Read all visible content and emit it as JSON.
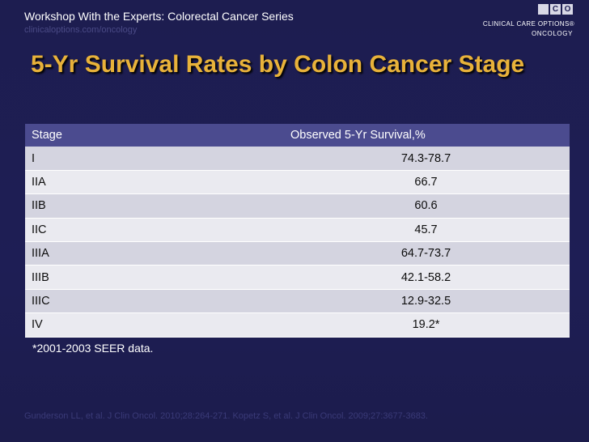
{
  "header": {
    "series": "Workshop With the Experts: Colorectal Cancer Series",
    "url": "clinicaloptions.com/oncology"
  },
  "logo": {
    "box1": "",
    "box2": "C",
    "box3": "O",
    "line1": "CLINICAL CARE OPTIONS®",
    "line2": "ONCOLOGY"
  },
  "title": "5-Yr Survival Rates by Colon Cancer Stage",
  "table": {
    "headers": [
      "Stage",
      "Observed 5-Yr Survival,%"
    ],
    "rows": [
      {
        "stage": "I",
        "survival": "74.3-78.7"
      },
      {
        "stage": "IIA",
        "survival": "66.7"
      },
      {
        "stage": "IIB",
        "survival": "60.6"
      },
      {
        "stage": "IIC",
        "survival": "45.7"
      },
      {
        "stage": "IIIA",
        "survival": "64.7-73.7"
      },
      {
        "stage": "IIIB",
        "survival": "42.1-58.2"
      },
      {
        "stage": "IIIC",
        "survival": "12.9-32.5"
      },
      {
        "stage": "IV",
        "survival": "19.2*"
      }
    ]
  },
  "footnote": "*2001-2003 SEER data.",
  "references": "Gunderson LL, et al. J Clin Oncol. 2010;28:264-271. Kopetz S, et al. J Clin Oncol. 2009;27:3677-3683."
}
